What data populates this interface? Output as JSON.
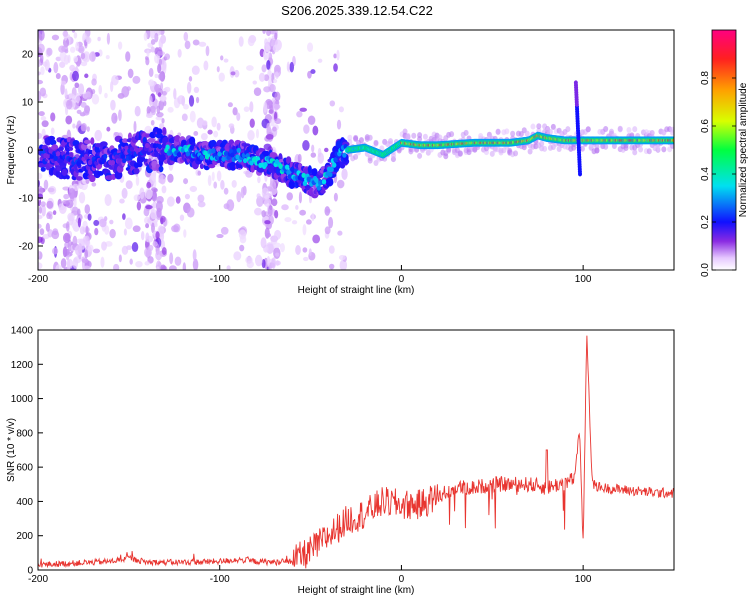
{
  "title": "S206.2025.339.12.54.C22",
  "chart_data": [
    {
      "type": "heatmap",
      "xlabel": "Height of straight line (km)",
      "ylabel": "Frequency (Hz)",
      "xlim": [
        -200,
        150
      ],
      "ylim": [
        -25,
        25
      ],
      "x_ticks": [
        -200,
        -100,
        0,
        100
      ],
      "y_ticks": [
        -20,
        -10,
        0,
        10,
        20
      ],
      "ridge": {
        "x": [
          -195,
          -180,
          -160,
          -140,
          -130,
          -120,
          -110,
          -100,
          -90,
          -80,
          -70,
          -60,
          -50,
          -45,
          -40,
          -35,
          -30,
          -20,
          -10,
          0,
          10,
          20,
          40,
          60,
          70,
          75,
          80,
          90,
          95,
          100,
          120,
          150
        ],
        "y": [
          -1,
          -2,
          -2,
          0,
          0,
          0,
          -1,
          -1,
          -1,
          -2,
          -3,
          -5,
          -6.5,
          -7,
          -5,
          -1,
          0,
          0.5,
          -1,
          1.5,
          1,
          1,
          1.5,
          1.5,
          2,
          3,
          2.5,
          2,
          2,
          2,
          2,
          2
        ]
      },
      "colorbar": {
        "label": "Normalized spectral amplitude",
        "range": [
          0,
          1
        ],
        "ticks": [
          "0.0",
          "0.2",
          "0.4",
          "0.6",
          "0.8"
        ]
      }
    },
    {
      "type": "line",
      "xlabel": "Height of straight line (km)",
      "ylabel": "SNR (10 * v/v)",
      "xlim": [
        -200,
        150
      ],
      "ylim": [
        0,
        1400
      ],
      "x_ticks": [
        -200,
        -100,
        0,
        100
      ],
      "y_ticks": [
        0,
        200,
        400,
        600,
        800,
        1000,
        1200,
        1400
      ],
      "color": "#e83530",
      "series": [
        {
          "name": "SNR",
          "x": [
            -200,
            -180,
            -160,
            -150,
            -140,
            -120,
            -100,
            -90,
            -80,
            -70,
            -60,
            -50,
            -40,
            -30,
            -20,
            -10,
            0,
            10,
            20,
            30,
            40,
            50,
            60,
            70,
            80,
            90,
            95,
            98,
            100,
            102,
            105,
            110,
            120,
            130,
            140,
            150
          ],
          "y": [
            30,
            40,
            50,
            70,
            45,
            45,
            50,
            60,
            50,
            45,
            50,
            110,
            200,
            290,
            330,
            400,
            380,
            380,
            430,
            480,
            480,
            500,
            500,
            500,
            480,
            510,
            530,
            820,
            140,
            1400,
            500,
            480,
            470,
            460,
            450,
            450
          ]
        }
      ]
    }
  ]
}
